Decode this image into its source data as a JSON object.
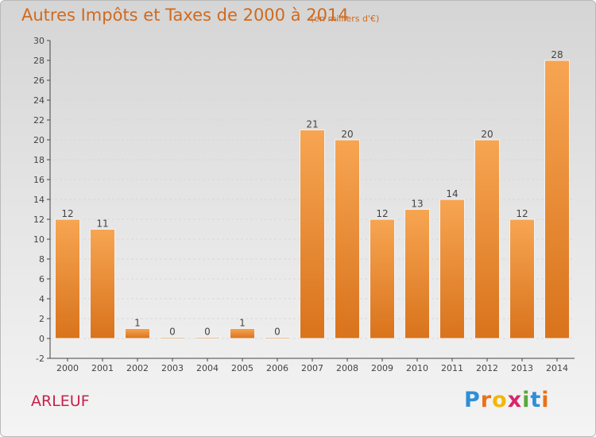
{
  "header": {
    "title": "Autres Impôts et Taxes de 2000 à 2014",
    "subtitle": "(en milliers d'€)"
  },
  "footer": {
    "commune": "ARLEUF",
    "logo_letters": [
      "P",
      "r",
      "o",
      "x",
      "i",
      "t",
      "i"
    ],
    "logo_colors": [
      "#2e8fd6",
      "#e8731a",
      "#f2b707",
      "#d8256c",
      "#5aa83a",
      "#2e8fd6",
      "#e8731a"
    ]
  },
  "chart_data": {
    "type": "bar",
    "title": "Autres Impôts et Taxes de 2000 à 2014",
    "subtitle": "(en milliers d'€)",
    "categories": [
      "2000",
      "2001",
      "2002",
      "2003",
      "2004",
      "2005",
      "2006",
      "2007",
      "2008",
      "2009",
      "2010",
      "2011",
      "2012",
      "2013",
      "2014"
    ],
    "values": [
      12,
      11,
      1,
      0,
      0,
      1,
      0,
      21,
      20,
      12,
      13,
      14,
      20,
      12,
      28
    ],
    "data_labels": [
      "12",
      "11",
      "1",
      "0",
      "0",
      "1",
      "0",
      "21",
      "20",
      "12",
      "13",
      "14",
      "20",
      "12",
      "28"
    ],
    "ylim": [
      -2,
      30
    ],
    "yticks": [
      -2,
      0,
      2,
      4,
      6,
      8,
      10,
      12,
      14,
      16,
      18,
      20,
      22,
      24,
      26,
      28,
      30
    ],
    "grid": "horizontal dashed",
    "colors": {
      "bar_light": "#f7a552",
      "bar_dark": "#d9731c",
      "bar_edge": "#f2f2f2",
      "axis": "#444444",
      "grid": "#d8d8d8",
      "label": "#444444"
    }
  }
}
